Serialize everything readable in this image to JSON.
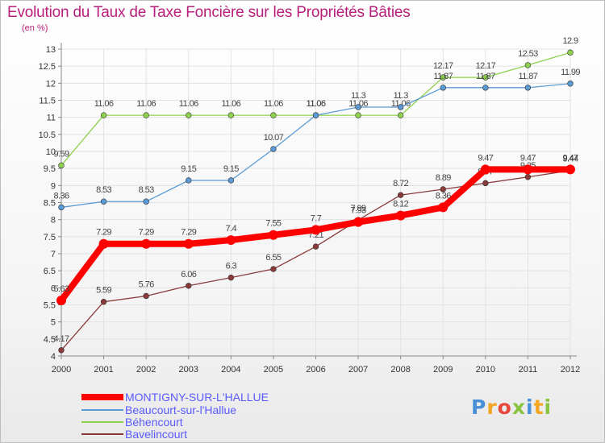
{
  "chart_data": {
    "type": "line",
    "title": "Evolution du Taux de Taxe Foncière sur les Propriétés Bâties",
    "unit_label": "(en %)",
    "x": [
      "2000",
      "2001",
      "2002",
      "2003",
      "2004",
      "2005",
      "2006",
      "2007",
      "2008",
      "2009",
      "2010",
      "2011",
      "2012"
    ],
    "ylim": [
      4,
      13
    ],
    "yticks": [
      "4",
      "4.5",
      "5",
      "5.5",
      "6",
      "6.5",
      "7",
      "7.5",
      "8",
      "8.5",
      "9",
      "9.5",
      "10",
      "10.5",
      "11",
      "11.5",
      "12",
      "12.5",
      "13"
    ],
    "grid": true,
    "legend_position": "bottom-left",
    "series": [
      {
        "name": "MONTIGNY-SUR-L'HALLUE",
        "color": "#ff0000",
        "values": [
          5.63,
          7.29,
          7.29,
          7.29,
          7.4,
          7.55,
          7.7,
          7.93,
          8.12,
          8.36,
          9.47,
          9.47,
          9.47
        ],
        "labels": [
          "5.63",
          "7.29",
          "7.29",
          "7.29",
          "7.4",
          "7.55",
          "7.7",
          "7.93",
          "8.12",
          "8.36",
          "9.47",
          "9.47",
          "9.47"
        ]
      },
      {
        "name": "Beaucourt-sur-l'Hallue",
        "color": "#5b9bd5",
        "values": [
          8.36,
          8.53,
          8.53,
          9.15,
          9.15,
          10.07,
          11.06,
          11.3,
          11.3,
          11.87,
          11.87,
          11.87,
          11.99
        ],
        "labels": [
          "8.36",
          "8.53",
          "8.53",
          "9.15",
          "9.15",
          "10.07",
          "11.06",
          "11.3",
          "11.3",
          "11.87",
          "11.87",
          "11.87",
          "11.99"
        ]
      },
      {
        "name": "Béhencourt",
        "color": "#8fd14f",
        "values": [
          9.59,
          11.06,
          11.06,
          11.06,
          11.06,
          11.06,
          11.06,
          11.06,
          11.06,
          12.17,
          12.17,
          12.53,
          12.9
        ],
        "labels": [
          "9.59",
          "11.06",
          "11.06",
          "11.06",
          "11.06",
          "11.06",
          "11.06",
          "11.06",
          "11.06",
          "12.17",
          "12.17",
          "12.53",
          "12.9"
        ]
      },
      {
        "name": "Bavelincourt",
        "color": "#8b3a3a",
        "values": [
          4.17,
          5.59,
          5.76,
          6.06,
          6.3,
          6.55,
          7.21,
          7.99,
          8.72,
          8.89,
          9.07,
          9.25,
          9.44
        ],
        "labels": [
          "4.17",
          "5.59",
          "5.76",
          "6.06",
          "6.3",
          "6.55",
          "7.21",
          "7.99",
          "8.72",
          "8.89",
          "9.07",
          "9.25",
          "9.44"
        ]
      }
    ]
  },
  "legend": {
    "items": [
      {
        "label": "MONTIGNY-SUR-L'HALLUE",
        "color": "#ff0000",
        "text_color": "#5a5aff"
      },
      {
        "label": "Beaucourt-sur-l'Hallue",
        "color": "#5b9bd5",
        "text_color": "#5a5aff"
      },
      {
        "label": "Béhencourt",
        "color": "#8fd14f",
        "text_color": "#5a5aff"
      },
      {
        "label": "Bavelincourt",
        "color": "#8b3a3a",
        "text_color": "#5a5aff"
      }
    ]
  },
  "logo": {
    "text": "Proxiti",
    "colors": [
      "#4a90d9",
      "#f5a623",
      "#e8483b",
      "#8ac43f",
      "#4a90d9",
      "#f5a623",
      "#8ac43f"
    ]
  },
  "colors": {
    "title": "#b81f7a",
    "axis": "#888888",
    "grid": "#e2e2e2",
    "tick_text": "#333333",
    "value_text": "#444444"
  }
}
